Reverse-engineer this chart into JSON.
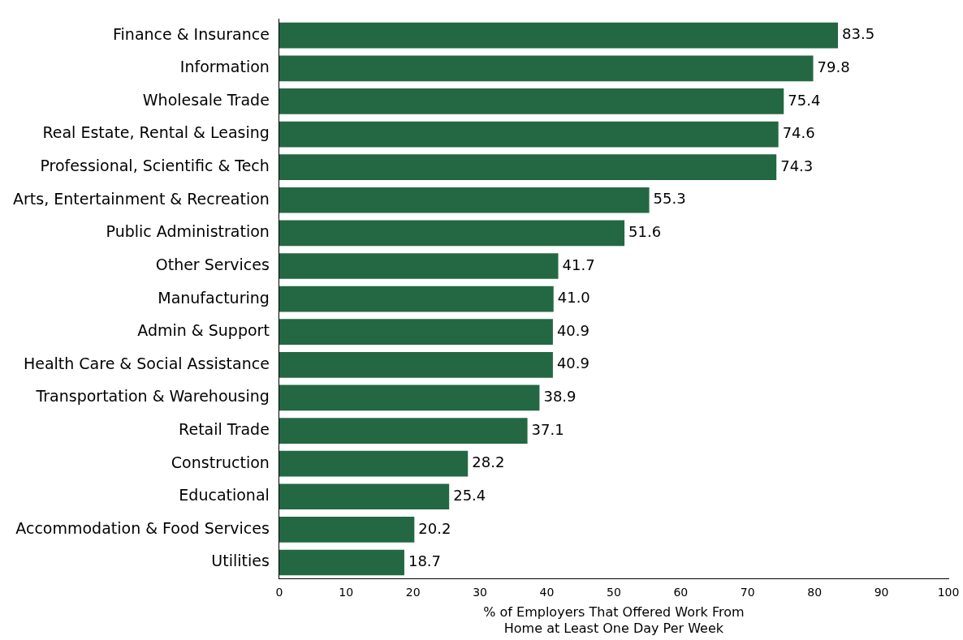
{
  "chart_data": {
    "type": "bar",
    "orientation": "horizontal",
    "xlabel": "% of Employers That Offered Work From\nHome at Least One Day Per Week",
    "categories": [
      "Finance & Insurance",
      "Information",
      "Wholesale Trade",
      "Real Estate, Rental & Leasing",
      "Professional, Scientific & Tech",
      "Arts, Entertainment & Recreation",
      "Public Administration",
      "Other Services",
      "Manufacturing",
      "Admin & Support",
      "Health Care & Social Assistance",
      "Transportation & Warehousing",
      "Retail Trade",
      "Construction",
      "Educational",
      "Accommodation & Food Services",
      "Utilities"
    ],
    "values": [
      83.5,
      79.8,
      75.4,
      74.6,
      74.3,
      55.3,
      51.6,
      41.7,
      41.0,
      40.9,
      40.9,
      38.9,
      37.1,
      28.2,
      25.4,
      20.2,
      18.7
    ],
    "value_labels": [
      "83.5",
      "79.8",
      "75.4",
      "74.6",
      "74.3",
      "55.3",
      "51.6",
      "41.7",
      "41.0",
      "40.9",
      "40.9",
      "38.9",
      "37.1",
      "28.2",
      "25.4",
      "20.2",
      "18.7"
    ],
    "color": "#236843",
    "xlim": [
      0,
      100
    ],
    "xticks": [
      0,
      10,
      20,
      30,
      40,
      50,
      60,
      70,
      80,
      90,
      100
    ],
    "grid": false,
    "legend": false
  }
}
